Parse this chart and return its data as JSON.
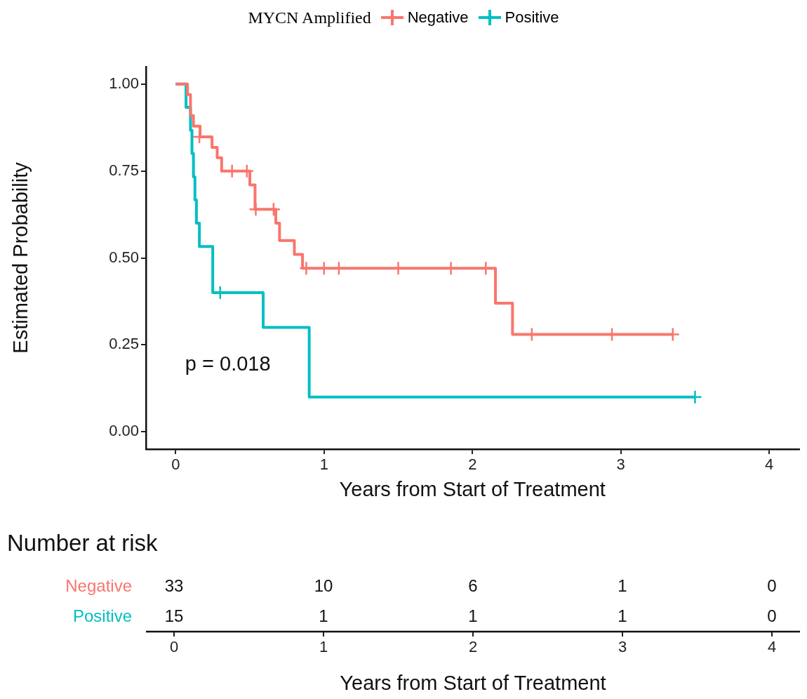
{
  "chart_data": [
    {
      "type": "step",
      "legend_title": "MYCN Amplified",
      "legend": "top",
      "xlabel": "Years from Start of Treatment",
      "ylabel": "Estimated Probability",
      "xlim": [
        -0.2,
        4.2
      ],
      "xticks": [
        0,
        1,
        2,
        3,
        4
      ],
      "ylim": [
        -0.05,
        1.05
      ],
      "yticks": [
        {
          "value": 0,
          "label": "0.00"
        },
        {
          "value": 0.25,
          "label": "0.25"
        },
        {
          "value": 0.5,
          "label": "0.50"
        },
        {
          "value": 0.75,
          "label": "0.75"
        },
        {
          "value": 1,
          "label": "1.00"
        }
      ],
      "grid": false,
      "annotations": [
        "p = 0.018"
      ],
      "series": [
        {
          "name": "Negative",
          "color": "#f8766d",
          "x": [
            0,
            0.08,
            0.1,
            0.12,
            0.165,
            0.245,
            0.28,
            0.31,
            0.5,
            0.535,
            0.675,
            0.7,
            0.8,
            0.855,
            2.155,
            2.27,
            3.35
          ],
          "values": [
            1,
            0.97,
            0.909,
            0.879,
            0.848,
            0.818,
            0.788,
            0.75,
            0.71,
            0.64,
            0.6,
            0.55,
            0.51,
            0.47,
            0.37,
            0.28,
            0.28
          ]
        },
        {
          "name": "Positive",
          "color": "#00bfc4",
          "x": [
            0,
            0.07,
            0.1,
            0.11,
            0.12,
            0.13,
            0.14,
            0.16,
            0.25,
            0.59,
            0.9,
            3.5
          ],
          "values": [
            1,
            0.933,
            0.867,
            0.8,
            0.733,
            0.667,
            0.6,
            0.533,
            0.4,
            0.3,
            0.1,
            0.1
          ]
        },
        {
          "type": "scatter",
          "marker": "cross",
          "color": "#f8766d",
          "x": [
            0.16,
            0.38,
            0.48,
            0.54,
            0.66,
            0.88,
            1.0,
            1.1,
            1.5,
            1.855,
            2.09,
            2.4,
            2.94,
            3.35
          ],
          "values": [
            0.848,
            0.75,
            0.75,
            0.64,
            0.64,
            0.47,
            0.47,
            0.47,
            0.47,
            0.47,
            0.47,
            0.28,
            0.28,
            0.28
          ]
        },
        {
          "type": "scatter",
          "marker": "cross",
          "color": "#00bfc4",
          "x": [
            0.3,
            3.5
          ],
          "values": [
            0.4,
            0.1
          ]
        }
      ]
    },
    {
      "type": "heatmap",
      "title": "Number at risk",
      "xlabel": "Years from Start of Treatment",
      "categories": [
        "0",
        "1",
        "2",
        "3",
        "4"
      ],
      "y_categories": [
        "Negative",
        "Positive"
      ],
      "cells": [
        [
          33,
          10,
          6,
          1,
          0
        ],
        [
          15,
          1,
          1,
          1,
          0
        ]
      ],
      "data_labels": true
    }
  ]
}
